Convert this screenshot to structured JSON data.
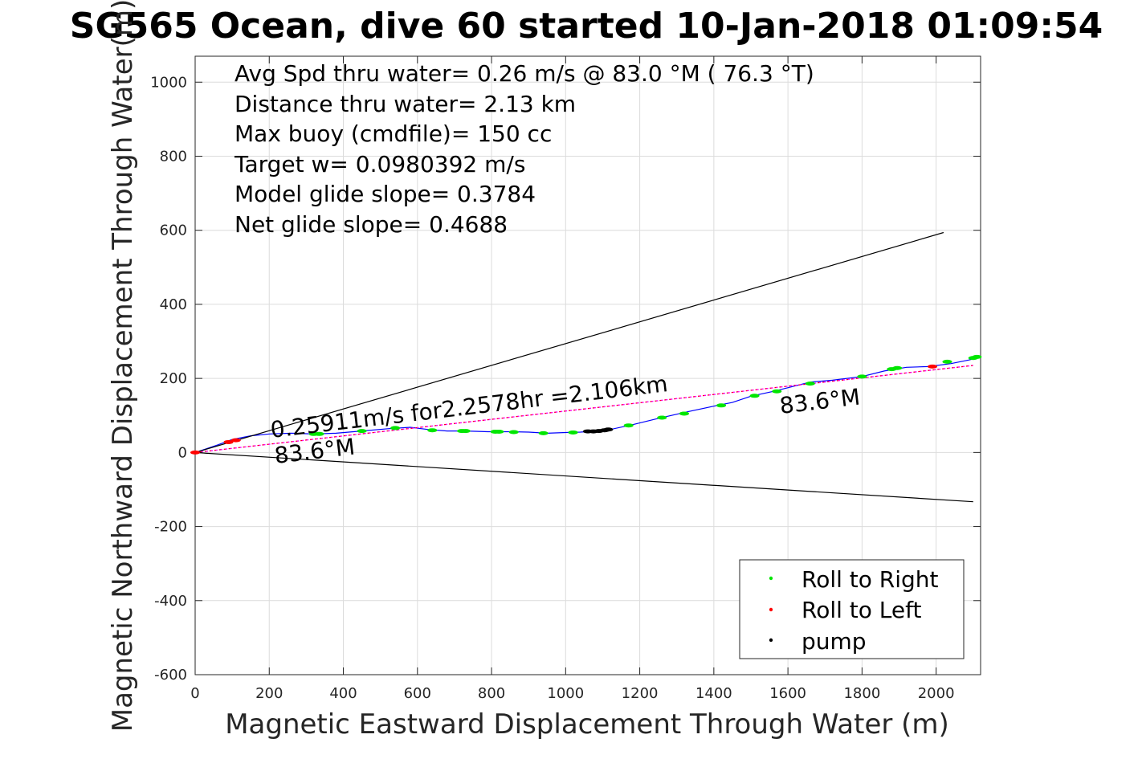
{
  "chart_data": {
    "type": "line",
    "title": "SG565 Ocean, dive 60 started 10-Jan-2018 01:09:54",
    "xlabel": "Magnetic Eastward Displacement Through Water (m)",
    "ylabel": "Magnetic Northward Displacement Through Water(m)",
    "xlim": [
      0,
      2120
    ],
    "ylim": [
      -600,
      1070
    ],
    "xticks": [
      0,
      200,
      400,
      600,
      800,
      1000,
      1200,
      1400,
      1600,
      1800,
      2000
    ],
    "yticks": [
      1000,
      800,
      600,
      400,
      200,
      0,
      -200,
      -400,
      -600
    ],
    "grid": true,
    "legend_position": "bottom-right",
    "info_lines": [
      "Avg Spd thru water=  0.26 m/s @  83.0 °M ( 76.3 °T)",
      "Distance thru water=  2.13 km",
      "Max buoy (cmdfile)= 150 cc",
      "Target w= 0.0980392 m/s",
      "Model glide slope= 0.3784",
      "Net glide slope= 0.4688"
    ],
    "annotations": {
      "speed_label": "0.25911m/s for2.2578hr =2.106km",
      "heading_start": "83.6°M",
      "heading_end": "83.6°M"
    },
    "series": [
      {
        "name": "track",
        "color": "#0000ff",
        "x": [
          0,
          60,
          100,
          150,
          200,
          260,
          320,
          380,
          450,
          520,
          580,
          630,
          680,
          730,
          790,
          850,
          900,
          950,
          1000,
          1040,
          1080,
          1120,
          1180,
          1250,
          1330,
          1400,
          1450,
          1500,
          1560,
          1620,
          1660,
          1720,
          1800,
          1860,
          1920,
          1980,
          2040,
          2090,
          2120
        ],
        "y": [
          0,
          20,
          35,
          45,
          50,
          52,
          50,
          52,
          58,
          64,
          68,
          62,
          58,
          58,
          56,
          56,
          55,
          52,
          54,
          55,
          58,
          62,
          75,
          92,
          110,
          125,
          135,
          152,
          165,
          180,
          190,
          195,
          205,
          220,
          230,
          232,
          240,
          250,
          258
        ]
      },
      {
        "name": "heading line",
        "color": "#ff00ff",
        "x": [
          0,
          2100
        ],
        "y": [
          0,
          235
        ]
      },
      {
        "name": "upper envelope",
        "color": "#000000",
        "x": [
          0,
          2020
        ],
        "y": [
          0,
          594
        ]
      },
      {
        "name": "lower envelope",
        "color": "#000000",
        "x": [
          0,
          2100
        ],
        "y": [
          0,
          -133
        ]
      }
    ],
    "markers": {
      "roll_right": {
        "name": "Roll to Right",
        "color": "#00e600",
        "points": [
          [
            320,
            50
          ],
          [
            335,
            50
          ],
          [
            450,
            58
          ],
          [
            540,
            66
          ],
          [
            640,
            60
          ],
          [
            720,
            58
          ],
          [
            730,
            58
          ],
          [
            810,
            56
          ],
          [
            820,
            56
          ],
          [
            860,
            55
          ],
          [
            940,
            52
          ],
          [
            1020,
            54
          ],
          [
            1170,
            73
          ],
          [
            1260,
            94
          ],
          [
            1320,
            105
          ],
          [
            1420,
            127
          ],
          [
            1510,
            153
          ],
          [
            1570,
            165
          ],
          [
            1660,
            186
          ],
          [
            1800,
            205
          ],
          [
            1880,
            225
          ],
          [
            1895,
            228
          ],
          [
            2030,
            245
          ],
          [
            2100,
            255
          ],
          [
            2110,
            258
          ]
        ]
      },
      "roll_left": {
        "name": "Roll to Left",
        "color": "#ff0000",
        "points": [
          [
            0,
            0
          ],
          [
            90,
            28
          ],
          [
            110,
            33
          ],
          [
            1990,
            232
          ]
        ]
      },
      "pump": {
        "name": "pump",
        "color": "#000000",
        "points": [
          [
            1060,
            57
          ],
          [
            1075,
            57
          ],
          [
            1090,
            58
          ],
          [
            1105,
            60
          ],
          [
            1115,
            62
          ]
        ]
      }
    }
  }
}
